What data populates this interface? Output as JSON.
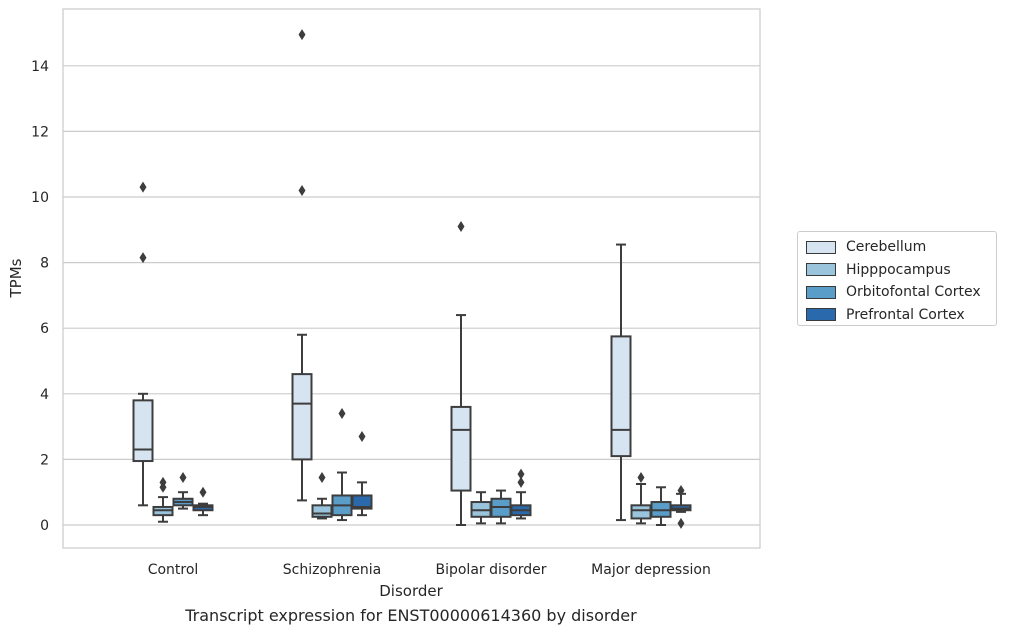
{
  "caption": "Transcript expression for ENST00000614360 by disorder",
  "chart_data": {
    "type": "box",
    "title": "",
    "xlabel": "Disorder",
    "ylabel": "TPMs",
    "ylim": [
      -0.7,
      15.5
    ],
    "yticks": [
      0,
      2,
      4,
      6,
      8,
      10,
      12,
      14
    ],
    "grid": "horizontal",
    "legend_position": "right",
    "categories": [
      "Control",
      "Schizophrenia",
      "Bipolar disorder",
      "Major depression"
    ],
    "series": [
      {
        "name": "Cerebellum",
        "color": "#d6e4f2",
        "boxes": [
          {
            "whislo": 0.6,
            "q1": 1.95,
            "med": 2.3,
            "q3": 3.8,
            "whishi": 4.0,
            "fliers": [
              8.15,
              10.3
            ]
          },
          {
            "whislo": 0.75,
            "q1": 2.0,
            "med": 3.7,
            "q3": 4.6,
            "whishi": 5.8,
            "fliers": [
              10.2,
              14.95
            ]
          },
          {
            "whislo": 0.0,
            "q1": 1.05,
            "med": 2.9,
            "q3": 3.6,
            "whishi": 6.4,
            "fliers": [
              9.1
            ]
          },
          {
            "whislo": 0.15,
            "q1": 2.1,
            "med": 2.9,
            "q3": 5.75,
            "whishi": 8.55,
            "fliers": []
          }
        ]
      },
      {
        "name": "Hipppocampus",
        "color": "#9ac3dc",
        "boxes": [
          {
            "whislo": 0.1,
            "q1": 0.3,
            "med": 0.45,
            "q3": 0.55,
            "whishi": 0.85,
            "fliers": [
              1.15,
              1.3
            ]
          },
          {
            "whislo": 0.2,
            "q1": 0.25,
            "med": 0.35,
            "q3": 0.6,
            "whishi": 0.8,
            "fliers": [
              1.45
            ]
          },
          {
            "whislo": 0.05,
            "q1": 0.25,
            "med": 0.45,
            "q3": 0.7,
            "whishi": 1.0,
            "fliers": []
          },
          {
            "whislo": 0.05,
            "q1": 0.2,
            "med": 0.45,
            "q3": 0.6,
            "whishi": 1.25,
            "fliers": [
              1.45
            ]
          }
        ]
      },
      {
        "name": "Orbitofontal Cortex",
        "color": "#5a9dc8",
        "boxes": [
          {
            "whislo": 0.5,
            "q1": 0.6,
            "med": 0.7,
            "q3": 0.8,
            "whishi": 1.0,
            "fliers": [
              1.45
            ]
          },
          {
            "whislo": 0.15,
            "q1": 0.3,
            "med": 0.6,
            "q3": 0.9,
            "whishi": 1.6,
            "fliers": [
              3.4
            ]
          },
          {
            "whislo": 0.05,
            "q1": 0.25,
            "med": 0.55,
            "q3": 0.8,
            "whishi": 1.05,
            "fliers": []
          },
          {
            "whislo": 0.0,
            "q1": 0.25,
            "med": 0.45,
            "q3": 0.7,
            "whishi": 1.15,
            "fliers": []
          }
        ]
      },
      {
        "name": "Prefrontal Cortex",
        "color": "#2a6aac",
        "boxes": [
          {
            "whislo": 0.3,
            "q1": 0.45,
            "med": 0.55,
            "q3": 0.6,
            "whishi": 0.65,
            "fliers": [
              1.0
            ]
          },
          {
            "whislo": 0.3,
            "q1": 0.5,
            "med": 0.55,
            "q3": 0.9,
            "whishi": 1.3,
            "fliers": [
              2.7
            ]
          },
          {
            "whislo": 0.2,
            "q1": 0.3,
            "med": 0.45,
            "q3": 0.6,
            "whishi": 1.0,
            "fliers": [
              1.3,
              1.55
            ]
          },
          {
            "whislo": 0.4,
            "q1": 0.45,
            "med": 0.5,
            "q3": 0.6,
            "whishi": 0.95,
            "fliers": [
              0.05,
              1.05
            ]
          }
        ]
      }
    ]
  }
}
